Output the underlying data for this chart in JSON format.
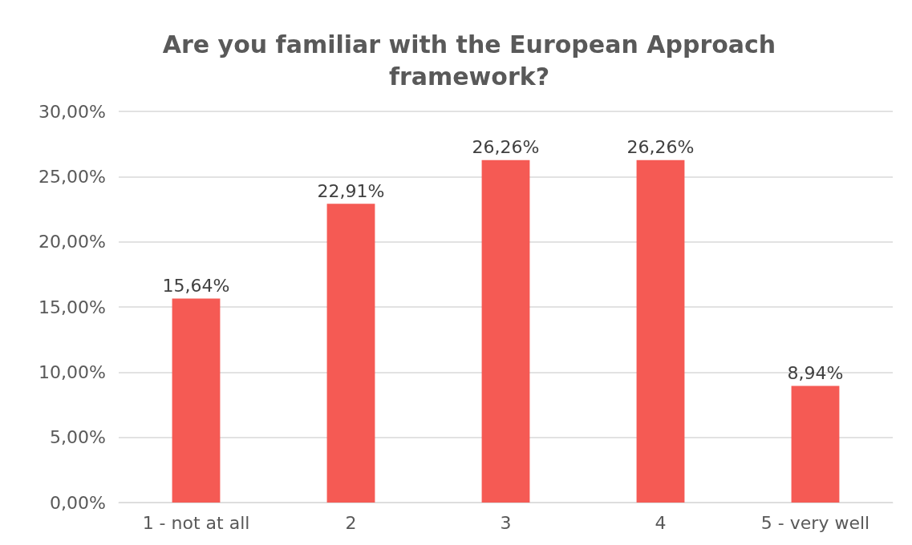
{
  "chart_data": {
    "type": "bar",
    "title": "Are you familiar with the European Approach\nframework?",
    "categories": [
      "1 - not at all",
      "2",
      "3",
      "4",
      "5 - very well"
    ],
    "values": [
      15.64,
      22.91,
      26.26,
      26.26,
      8.94
    ],
    "value_labels": [
      "15,64%",
      "22,91%",
      "26,26%",
      "26,26%",
      "8,94%"
    ],
    "color": "#f55a54",
    "ylim": [
      0,
      30
    ],
    "yticks": [
      {
        "value": 0,
        "label": "0,00%"
      },
      {
        "value": 5,
        "label": "5,00%"
      },
      {
        "value": 10,
        "label": "10,00%"
      },
      {
        "value": 15,
        "label": "15,00%"
      },
      {
        "value": 20,
        "label": "20,00%"
      },
      {
        "value": 25,
        "label": "25,00%"
      },
      {
        "value": 30,
        "label": "30,00%"
      }
    ],
    "grid": "y"
  }
}
